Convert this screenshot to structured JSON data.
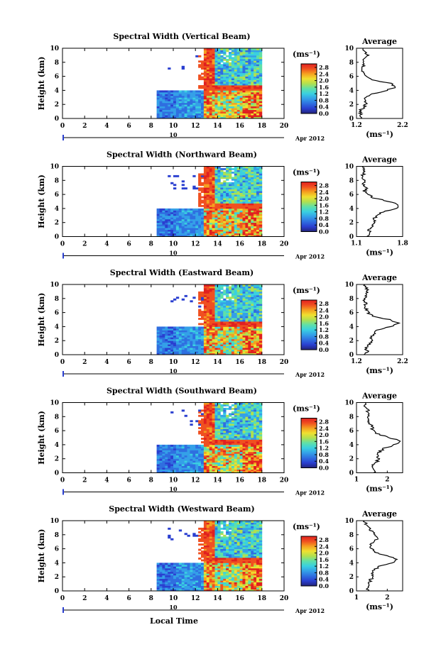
{
  "chart_data": {
    "type": "heatmap",
    "xlabel": "Local Time",
    "date_label": "Apr 2012",
    "date_day": "10",
    "ylabel": "Height (km)",
    "unit_label": "(ms⁻¹)",
    "avg_title": "Average",
    "xlim": [
      0,
      20
    ],
    "ylim": [
      0,
      10
    ],
    "x_ticks": [
      "0",
      "2",
      "4",
      "6",
      "8",
      "10",
      "12",
      "14",
      "16",
      "18",
      "20"
    ],
    "y_ticks": [
      "0",
      "2",
      "4",
      "6",
      "8",
      "10"
    ],
    "colorbar_ticks": [
      "2.8",
      "2.4",
      "2.0",
      "1.6",
      "1.2",
      "0.8",
      "0.4",
      "0.0"
    ],
    "colorbar_range": [
      0,
      2.8
    ],
    "colorscale": [
      "#23237a",
      "#2a3fd0",
      "#2f6fe0",
      "#34a0e8",
      "#3ad0e0",
      "#5fe0a8",
      "#b0e050",
      "#f0e030",
      "#f5a020",
      "#f05020",
      "#e02020"
    ],
    "panels": [
      {
        "title": "Spectral Width (Vertical Beam)",
        "avg_xlim": [
          1.2,
          2.2
        ],
        "avg_ticks": [
          "1.2",
          "2.2"
        ],
        "profile": [
          1.28,
          1.3,
          1.26,
          1.35,
          1.4,
          1.38,
          1.42,
          1.55,
          1.85,
          2.05,
          1.95,
          1.5,
          1.4,
          1.36,
          1.3,
          1.35,
          1.32,
          1.4,
          1.45,
          1.38,
          1.34
        ]
      },
      {
        "title": "Spectral Width (Northward Beam)",
        "avg_xlim": [
          1.1,
          1.8
        ],
        "avg_ticks": [
          "1.1",
          "1.8"
        ],
        "profile": [
          1.25,
          1.3,
          1.28,
          1.33,
          1.38,
          1.36,
          1.4,
          1.5,
          1.7,
          1.75,
          1.6,
          1.35,
          1.3,
          1.22,
          1.25,
          1.2,
          1.23,
          1.18,
          1.22,
          1.2,
          1.19
        ]
      },
      {
        "title": "Spectral Width (Eastward Beam)",
        "avg_xlim": [
          1.2,
          2.2
        ],
        "avg_ticks": [
          "1.2",
          "2.2"
        ],
        "profile": [
          1.4,
          1.45,
          1.38,
          1.5,
          1.55,
          1.52,
          1.58,
          1.65,
          1.95,
          2.1,
          1.9,
          1.55,
          1.45,
          1.42,
          1.38,
          1.4,
          1.35,
          1.42,
          1.45,
          1.4,
          1.38
        ]
      },
      {
        "title": "Spectral Width (Southward Beam)",
        "avg_xlim": [
          1,
          2.5
        ],
        "avg_ticks": [
          "1",
          "2"
        ],
        "profile": [
          1.55,
          1.6,
          1.5,
          1.65,
          1.7,
          1.68,
          1.75,
          1.9,
          2.25,
          2.4,
          2.1,
          1.7,
          1.55,
          1.5,
          1.45,
          1.4,
          1.42,
          1.35,
          1.38,
          1.3,
          1.28
        ]
      },
      {
        "title": "Spectral Width (Westward Beam)",
        "avg_xlim": [
          1,
          2.5
        ],
        "avg_ticks": [
          "1",
          "2"
        ],
        "profile": [
          1.35,
          1.4,
          1.38,
          1.45,
          1.52,
          1.5,
          1.58,
          1.75,
          2.15,
          2.3,
          2.0,
          1.6,
          1.5,
          1.45,
          1.55,
          1.7,
          1.6,
          1.5,
          1.4,
          1.3,
          1.25
        ]
      }
    ]
  }
}
